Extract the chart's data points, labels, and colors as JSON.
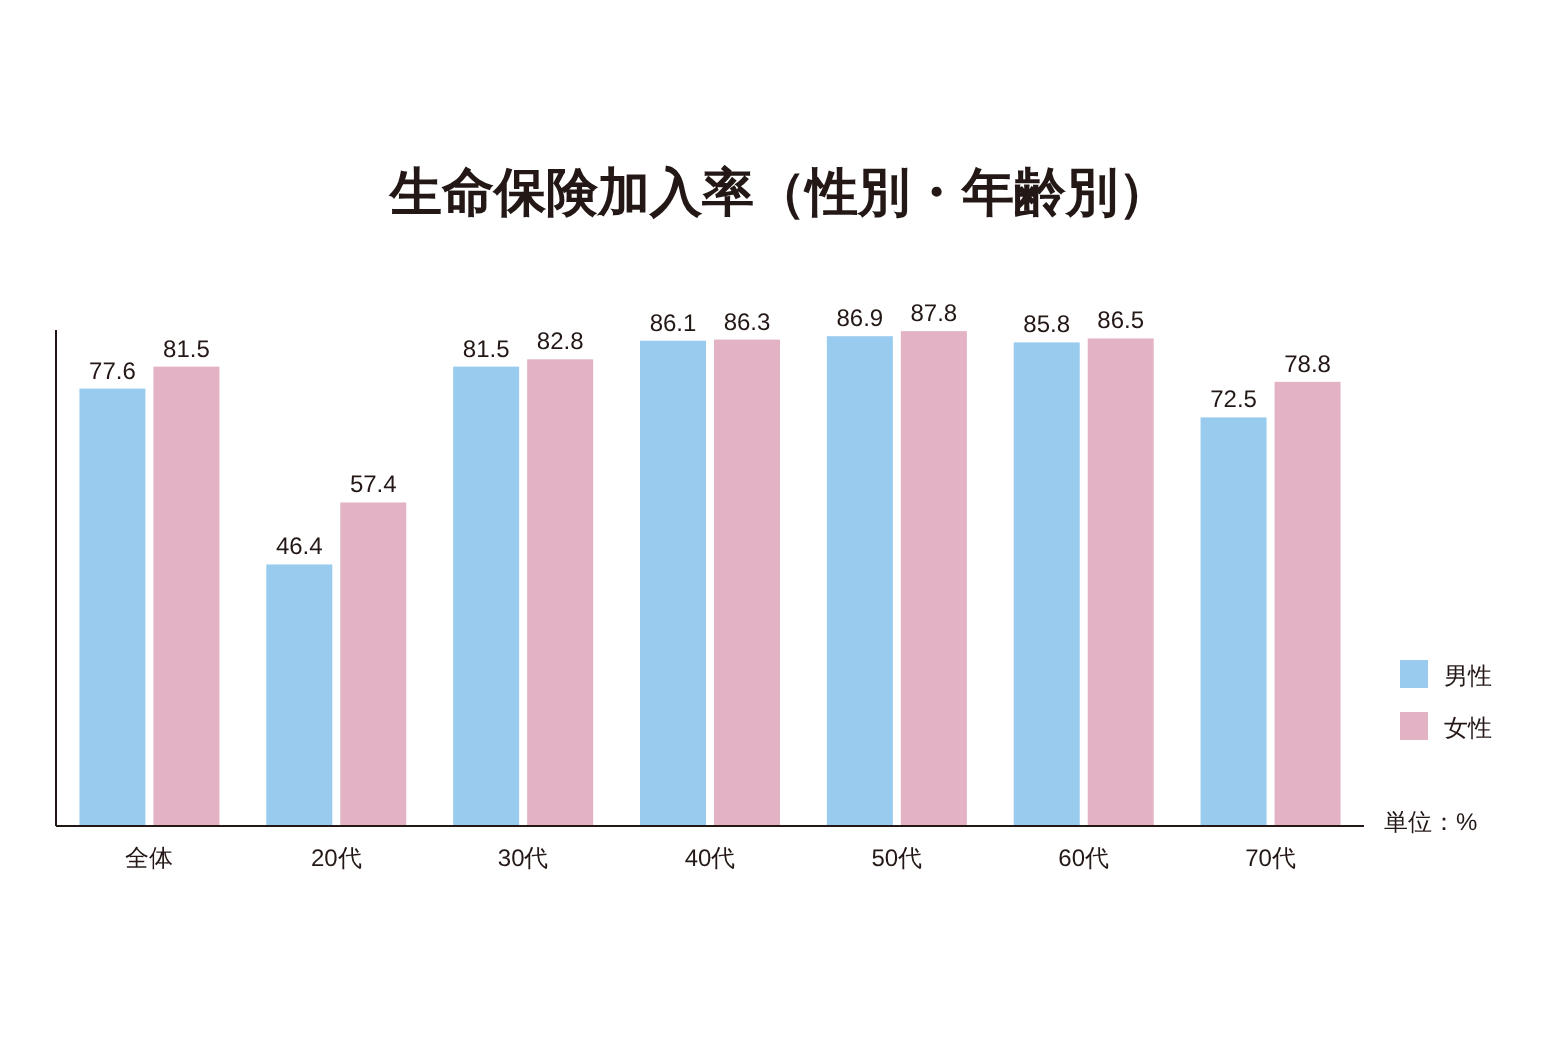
{
  "chart_data": {
    "type": "bar",
    "title": "生命保険加入率（性別・年齢別）",
    "categories": [
      "全体",
      "20代",
      "30代",
      "40代",
      "50代",
      "60代",
      "70代"
    ],
    "series": [
      {
        "name": "男性",
        "color": "#99cbef",
        "values": [
          77.6,
          46.4,
          81.5,
          86.1,
          86.9,
          85.8,
          72.5
        ]
      },
      {
        "name": "女性",
        "color": "#e3b3c5",
        "values": [
          81.5,
          57.4,
          82.8,
          86.3,
          87.8,
          86.5,
          78.8
        ]
      }
    ],
    "ylim": [
      0,
      88
    ],
    "data_labels": true,
    "legend": "right",
    "annotations": [
      "単位：%"
    ]
  }
}
